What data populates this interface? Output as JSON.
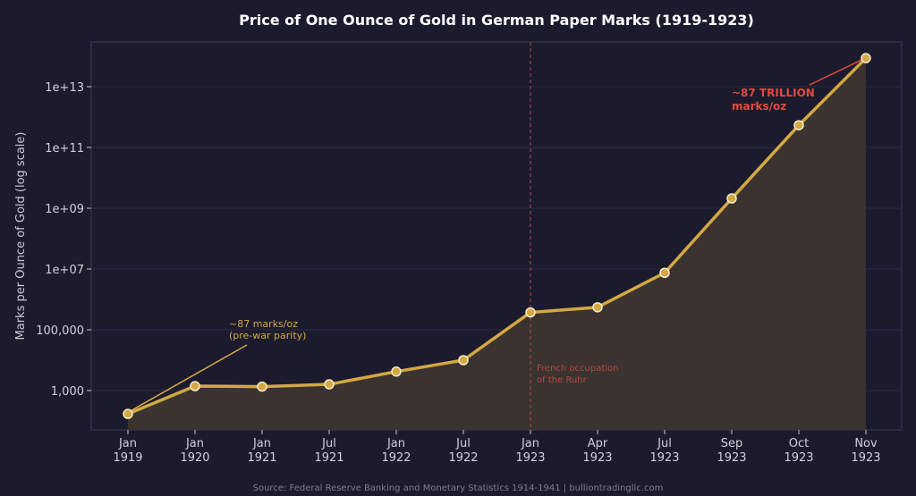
{
  "chart_data": {
    "type": "line",
    "title": "Price of One Ounce of Gold in German Paper Marks (1919-1923)",
    "xlabel": "",
    "ylabel": "Marks per Ounce of Gold (log scale)",
    "yscale": "log",
    "ylim": [
      50,
      300000000000000.0
    ],
    "grid": true,
    "categories": [
      "Jan\n1919",
      "Jan\n1920",
      "Jan\n1921",
      "Jul\n1921",
      "Jan\n1922",
      "Jul\n1922",
      "Jan\n1923",
      "Apr\n1923",
      "Jul\n1923",
      "Sep\n1923",
      "Oct\n1923",
      "Nov\n1923"
    ],
    "values": [
      170,
      1400,
      1350,
      1600,
      4200,
      10000,
      372000,
      550000,
      7500000,
      2100000000,
      540000000000,
      87000000000000
    ],
    "yticks": [
      {
        "v": 1000,
        "label": "1,000"
      },
      {
        "v": 100000,
        "label": "100,000"
      },
      {
        "v": 10000000.0,
        "label": "1e+07"
      },
      {
        "v": 1000000000.0,
        "label": "1e+09"
      },
      {
        "v": 100000000000.0,
        "label": "1e+11"
      },
      {
        "v": 10000000000000.0,
        "label": "1e+13"
      }
    ],
    "annotations": [
      {
        "text": [
          "~87 marks/oz",
          "(pre-war parity)"
        ],
        "target_index": 0,
        "color": "#d4a843"
      },
      {
        "text": [
          "~87 TRILLION",
          "marks/oz"
        ],
        "target_index": 11,
        "color": "#e04a3f"
      },
      {
        "text": [
          "French occupation",
          "of the Ruhr"
        ],
        "vline_index": 6,
        "color": "#c0463e"
      }
    ],
    "colors": {
      "line": "#d4a843",
      "fill": "#3a3330",
      "background": "#1c1b2e",
      "accent": "#e04a3f"
    }
  },
  "source": "Source: Federal Reserve Banking and Monetary Statistics 1914-1941  |  bulliontradingllc.com"
}
